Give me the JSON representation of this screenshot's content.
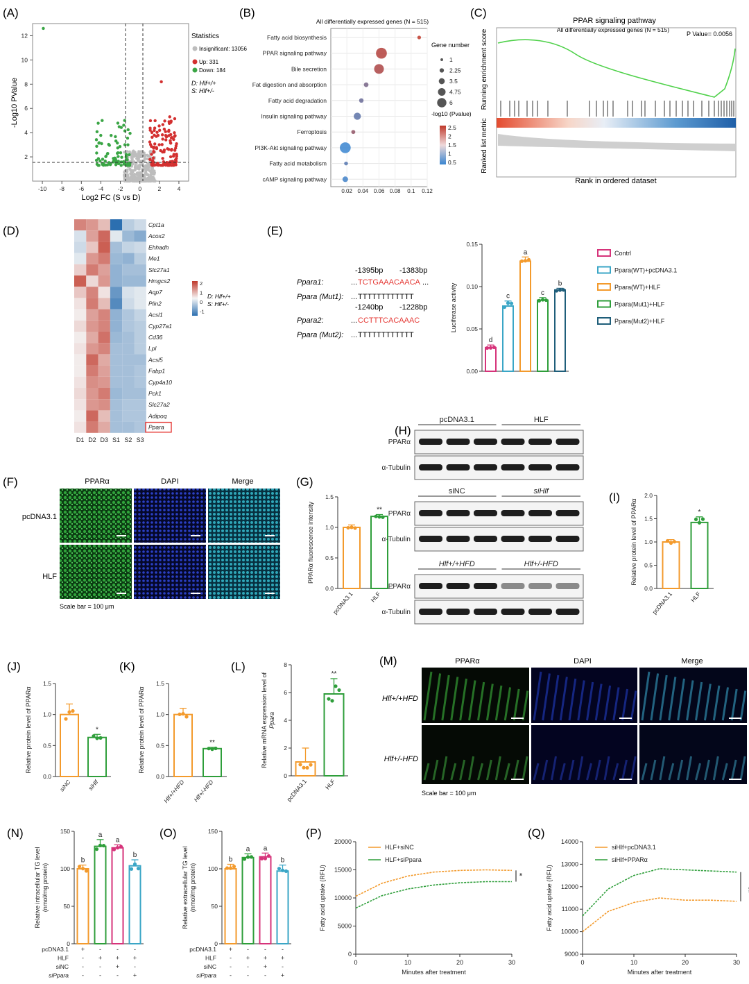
{
  "colors": {
    "up": "#d32f2f",
    "down": "#3aa545",
    "insig": "#bdbdbd",
    "orange": "#f39a2c",
    "green": "#2e9e3a",
    "magenta": "#d6337a",
    "cyan": "#3aa6c6",
    "darkteal": "#1f5e7a",
    "heat_hi": "#c0392b",
    "heat_lo": "#2c6fb0"
  },
  "panels": {
    "A": {
      "letter": "(A)",
      "legend_title": "Statistics",
      "legend": [
        "Insignificant: 13056",
        "Up: 331",
        "Down: 184"
      ],
      "group_D": "D: Hlf+/+",
      "group_S": "S: Hlf+/-",
      "chart_data": {
        "type": "scatter",
        "xlabel": "Log2 FC (S vs D)",
        "ylabel": "-Log10 PValue",
        "xticks": [
          "-10",
          "-8",
          "-6",
          "-4",
          "-2",
          "0",
          "2",
          "4"
        ],
        "yticks": [
          "2",
          "4",
          "6",
          "8",
          "10",
          "12"
        ],
        "xlim": [
          -11,
          5
        ],
        "ylim": [
          0,
          13
        ],
        "thresholds": {
          "log2fc": [
            -1,
            1
          ],
          "neglog10p": 1.3
        },
        "series": [
          {
            "name": "Insignificant",
            "count": 13056
          },
          {
            "name": "Up",
            "count": 331
          },
          {
            "name": "Down",
            "count": 184
          }
        ]
      }
    },
    "B": {
      "letter": "(B)",
      "chart_data": {
        "type": "scatter",
        "title": "All differentially expressed genes (N = 515)",
        "categories": [
          "Fatty acid biosynthesis",
          "PPAR signaling pathway",
          "Bile secretion",
          "Fat digestion and absorption",
          "Fatty acid degradation",
          "Insulin signaling pathway",
          "Ferroptosis",
          "PI3K-Akt signaling pathway",
          "Fatty acid metabolism",
          "cAMP signaling pathway"
        ],
        "gene_ratio": [
          0.11,
          0.063,
          0.06,
          0.044,
          0.038,
          0.033,
          0.028,
          0.018,
          0.019,
          0.018
        ],
        "gene_number": [
          1,
          5.5,
          4.8,
          1.6,
          1.5,
          3.2,
          1.2,
          5.5,
          1.1,
          2.2
        ],
        "neglog10p": [
          2.5,
          2.3,
          2.2,
          1.4,
          1.2,
          1.0,
          1.8,
          0.5,
          0.9,
          0.6
        ],
        "xticks": [
          "0.02",
          "0.04",
          "0.06",
          "0.08",
          "0.1",
          "0.12"
        ],
        "xlim": [
          0,
          0.12
        ],
        "size_title": "Gene number",
        "size_levels": [
          "1",
          "2.25",
          "3.5",
          "4.75",
          "6"
        ],
        "color_title": "-log10 (Pvalue)",
        "color_levels": [
          "2.5",
          "2",
          "1.5",
          "1",
          "0.5"
        ]
      }
    },
    "C": {
      "letter": "(C)",
      "title": "PPAR signaling pathway",
      "subtitle": "All differentially expressed genes (N = 515)",
      "pvalue": "P Value= 0.0056",
      "ylabel_top": "Running enrichment score",
      "ylabel_bottom": "Ranked list metric",
      "xlabel": "Rank in ordered dataset"
    },
    "D": {
      "letter": "(D)",
      "columns": [
        "D1",
        "D2",
        "D3",
        "S1",
        "S2",
        "S3"
      ],
      "genes": [
        "Cpt1a",
        "Acox2",
        "Ehhadh",
        "Me1",
        "Slc27a1",
        "Hmgcs2",
        "Aqp7",
        "Plin2",
        "Acsl1",
        "Cyp27a1",
        "Cd36",
        "Lpl",
        "Acsl5",
        "Fabp1",
        "Cyp4a10",
        "Pck1",
        "Slc27a2",
        "Adipoq",
        "Ppara"
      ],
      "matrix": [
        [
          1.2,
          1.0,
          0.6,
          -2,
          -0.6,
          -0.4
        ],
        [
          -0.3,
          0.9,
          1.5,
          -0.2,
          -0.9,
          -1.1
        ],
        [
          -0.4,
          0.5,
          1.6,
          -0.8,
          -0.5,
          -0.4
        ],
        [
          -0.2,
          1.0,
          1.3,
          -0.9,
          -1.0,
          -0.6
        ],
        [
          0.4,
          1.3,
          0.9,
          -1.0,
          -0.8,
          -0.8
        ],
        [
          1.6,
          0.3,
          1.0,
          -1.0,
          -0.9,
          -0.9
        ],
        [
          0.5,
          1.2,
          0.2,
          -1.4,
          -0.3,
          -0.2
        ],
        [
          0.2,
          1.3,
          0.6,
          -1.6,
          -0.4,
          -0.2
        ],
        [
          0.1,
          0.9,
          1.2,
          -1.0,
          -0.7,
          -0.5
        ],
        [
          0.3,
          1.0,
          1.2,
          -1.0,
          -0.7,
          -0.6
        ],
        [
          0.1,
          0.8,
          1.4,
          -0.9,
          -0.8,
          -0.6
        ],
        [
          0.2,
          1.0,
          1.2,
          -0.8,
          -0.8,
          -0.6
        ],
        [
          0.1,
          1.5,
          0.8,
          -0.8,
          -0.8,
          -0.8
        ],
        [
          0.1,
          1.3,
          0.9,
          -0.8,
          -0.8,
          -0.7
        ],
        [
          0.2,
          1.1,
          1.0,
          -0.8,
          -0.8,
          -0.7
        ],
        [
          0.3,
          1.0,
          1.3,
          -0.9,
          -0.8,
          -0.8
        ],
        [
          0.2,
          1.0,
          1.1,
          -0.8,
          -0.7,
          -0.7
        ],
        [
          0.1,
          1.5,
          0.6,
          -0.8,
          -0.7,
          -0.7
        ],
        [
          0.2,
          1.3,
          0.8,
          -0.8,
          -0.8,
          -0.7
        ]
      ],
      "scale_ticks": [
        "2",
        "1",
        "0",
        "-1"
      ],
      "group_D": "D: Hlf+/+",
      "group_S": "S: Hlf+/-"
    },
    "E": {
      "letter": "(E)",
      "pos1": "-1395bp",
      "pos2": "-1383bp",
      "pos3": "-1240bp",
      "pos4": "-1228bp",
      "r1_label": "Ppara1:",
      "r1_seq": "TCTGAAACAACA",
      "r2_label": "Ppara (Mut1):",
      "r2_seq": "TTTTTTTTTTTT",
      "r3_label": "Ppara2:",
      "r3_seq": "CCTTTCACAAAC",
      "r4_label": "Ppara (Mut2):",
      "r4_seq": "TTTTTTTTTTTT",
      "dots": "...",
      "legend": [
        "Contrl",
        "Ppara(WT)+pcDNA3.1",
        "Ppara(WT)+HLF",
        "Ppara(Mut1)+HLF",
        "Ppara(Mut2)+HLF"
      ],
      "chart_data": {
        "type": "bar",
        "ylabel": "Luciferase activity",
        "ylim": [
          0,
          0.15
        ],
        "yticks": [
          "0.00",
          "0.05",
          "0.10",
          "0.15"
        ],
        "values": [
          0.028,
          0.077,
          0.13,
          0.084,
          0.096
        ],
        "letters": [
          "d",
          "c",
          "a",
          "c",
          "b"
        ]
      }
    },
    "F": {
      "letter": "(F)",
      "cols": [
        "PPARα",
        "DAPI",
        "Merge"
      ],
      "rows": [
        "pcDNA3.1",
        "HLF"
      ],
      "scale": "Scale bar = 100 μm"
    },
    "G": {
      "letter": "(G)",
      "chart_data": {
        "type": "bar",
        "ylabel": "PPARα fluorescence intensity",
        "ylim": [
          0,
          1.5
        ],
        "yticks": [
          "0.0",
          "0.5",
          "1.0",
          "1.5"
        ],
        "categories": [
          "pcDNA3.1",
          "HLF"
        ],
        "values": [
          1.0,
          1.18
        ],
        "sig": [
          "",
          "**"
        ]
      }
    },
    "H": {
      "letter": "(H)",
      "g1a": "pcDNA3.1",
      "g1b": "HLF",
      "g2a": "siNC",
      "g2b": "siHlf",
      "g3a": "Hlf+/+HFD",
      "g3b": "Hlf+/-HFD",
      "target": "PPARα",
      "ctrl": "α-Tubulin"
    },
    "I": {
      "letter": "(I)",
      "chart_data": {
        "type": "bar",
        "ylabel": "Relative protein level of PPARα",
        "ylim": [
          0,
          2.0
        ],
        "yticks": [
          "0.0",
          "0.5",
          "1.0",
          "1.5",
          "2.0"
        ],
        "categories": [
          "pcDNA3.1",
          "HLF"
        ],
        "values": [
          1.0,
          1.42
        ],
        "sig": [
          "",
          "*"
        ]
      }
    },
    "J": {
      "letter": "(J)",
      "chart_data": {
        "type": "bar",
        "ylabel": "Relative protein level of PPARα",
        "ylim": [
          0,
          1.5
        ],
        "yticks": [
          "0.0",
          "0.5",
          "1.0",
          "1.5"
        ],
        "categories": [
          "siNC",
          "siHlf"
        ],
        "values": [
          1.0,
          0.63
        ],
        "sig": [
          "",
          "*"
        ]
      }
    },
    "K": {
      "letter": "(K)",
      "chart_data": {
        "type": "bar",
        "ylabel": "Relative protein level of PPARα",
        "ylim": [
          0,
          1.5
        ],
        "yticks": [
          "0.0",
          "0.5",
          "1.0",
          "1.5"
        ],
        "categories": [
          "Hlf+/+HFD",
          "Hlf+/-HFD"
        ],
        "values": [
          1.0,
          0.45
        ],
        "sig": [
          "",
          "**"
        ]
      }
    },
    "L": {
      "letter": "(L)",
      "chart_data": {
        "type": "bar",
        "ylabel": "Relative mRNA expression level of",
        "ylabel2": "Ppara",
        "ylim": [
          0,
          8
        ],
        "yticks": [
          "0",
          "2",
          "4",
          "6",
          "8"
        ],
        "categories": [
          "pcDNA3.1",
          "HLF"
        ],
        "values": [
          1.0,
          5.9
        ],
        "sig": [
          "",
          "**"
        ]
      }
    },
    "M": {
      "letter": "(M)",
      "cols": [
        "PPARα",
        "DAPI",
        "Merge"
      ],
      "rows": [
        "Hlf+/+HFD",
        "Hlf+/-HFD"
      ],
      "scale": "Scale bar = 100 μm"
    },
    "N": {
      "letter": "(N)",
      "rowlabels": [
        "pcDNA3.1",
        "HLF",
        "siNC",
        "siPpara"
      ],
      "signs": [
        [
          "+",
          "-",
          "-",
          "-"
        ],
        [
          "-",
          "+",
          "+",
          "+"
        ],
        [
          "-",
          "-",
          "+",
          "-"
        ],
        [
          "-",
          "-",
          "-",
          "+"
        ]
      ],
      "chart_data": {
        "type": "bar",
        "ylabel": "Relative intracellular TG level",
        "ylabel2": "(nmol/mg protein)",
        "ylim": [
          0,
          150
        ],
        "yticks": [
          "0",
          "50",
          "100",
          "150"
        ],
        "values": [
          100,
          130,
          128,
          104
        ],
        "letters": [
          "b",
          "a",
          "a",
          "b"
        ]
      }
    },
    "O": {
      "letter": "(O)",
      "rowlabels": [
        "pcDNA3.1",
        "HLF",
        "siNC",
        "siPpara"
      ],
      "signs": [
        [
          "+",
          "-",
          "-",
          "-"
        ],
        [
          "-",
          "+",
          "+",
          "+"
        ],
        [
          "-",
          "-",
          "+",
          "-"
        ],
        [
          "-",
          "-",
          "-",
          "+"
        ]
      ],
      "chart_data": {
        "type": "bar",
        "ylabel": "Relative extracellular TG level",
        "ylabel2": "(nmol/mg protein)",
        "ylim": [
          0,
          150
        ],
        "yticks": [
          "0",
          "50",
          "100",
          "150"
        ],
        "values": [
          100,
          115,
          116,
          97
        ],
        "letters": [
          "b",
          "a",
          "a",
          "b"
        ]
      }
    },
    "P": {
      "letter": "(P)",
      "sig": "*",
      "chart_data": {
        "type": "line",
        "xlabel": "Minutes after treatment",
        "ylabel": "Fatty acid uptake (RFU)",
        "xlim": [
          0,
          30
        ],
        "ylim": [
          0,
          20000
        ],
        "xticks": [
          "0",
          "10",
          "20",
          "30"
        ],
        "yticks": [
          "0",
          "5000",
          "10000",
          "15000",
          "20000"
        ],
        "series": [
          {
            "name": "HLF+siNC",
            "x": [
              0,
              5,
              10,
              15,
              20,
              25,
              30
            ],
            "values": [
              10300,
              12600,
              13900,
              14600,
              14900,
              15000,
              14900
            ]
          },
          {
            "name": "HLF+siPpara",
            "x": [
              0,
              5,
              10,
              15,
              20,
              25,
              30
            ],
            "values": [
              8200,
              10400,
              11600,
              12300,
              12700,
              12900,
              12900
            ]
          }
        ]
      }
    },
    "Q": {
      "letter": "(Q)",
      "sig": "**",
      "chart_data": {
        "type": "line",
        "xlabel": "Minutes after treatment",
        "ylabel": "Fatty acid uptake (RFU)",
        "xlim": [
          0,
          30
        ],
        "ylim": [
          9000,
          14000
        ],
        "xticks": [
          "0",
          "10",
          "20",
          "30"
        ],
        "yticks": [
          "9000",
          "10000",
          "11000",
          "12000",
          "13000",
          "14000"
        ],
        "series": [
          {
            "name": "siHlf+pcDNA3.1",
            "x": [
              0,
              5,
              10,
              15,
              20,
              25,
              30
            ],
            "values": [
              10000,
              10900,
              11300,
              11500,
              11400,
              11400,
              11350
            ]
          },
          {
            "name": "siHlf+PPARα",
            "x": [
              0,
              5,
              10,
              15,
              20,
              25,
              30
            ],
            "values": [
              10700,
              11900,
              12500,
              12800,
              12750,
              12700,
              12650
            ]
          }
        ]
      }
    }
  }
}
